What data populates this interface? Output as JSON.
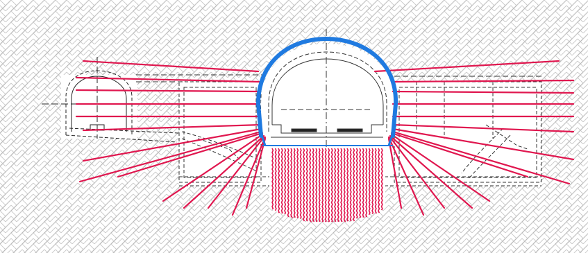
{
  "diagram": {
    "type": "tunnel-cross-section",
    "labels": [],
    "colors": {
      "background": "#ffffff",
      "hatch": "#b9b9b9",
      "lining": "#1f7ae0",
      "anchor_bolts": "#e0174f",
      "outline": "#222222",
      "dashed": "#333333"
    },
    "icons": {
      "hatch_pattern": "rock-hatch-pattern",
      "left_structure": "left-pilot-tunnel-outline",
      "main_tunnel": "main-tunnel-outline"
    }
  }
}
